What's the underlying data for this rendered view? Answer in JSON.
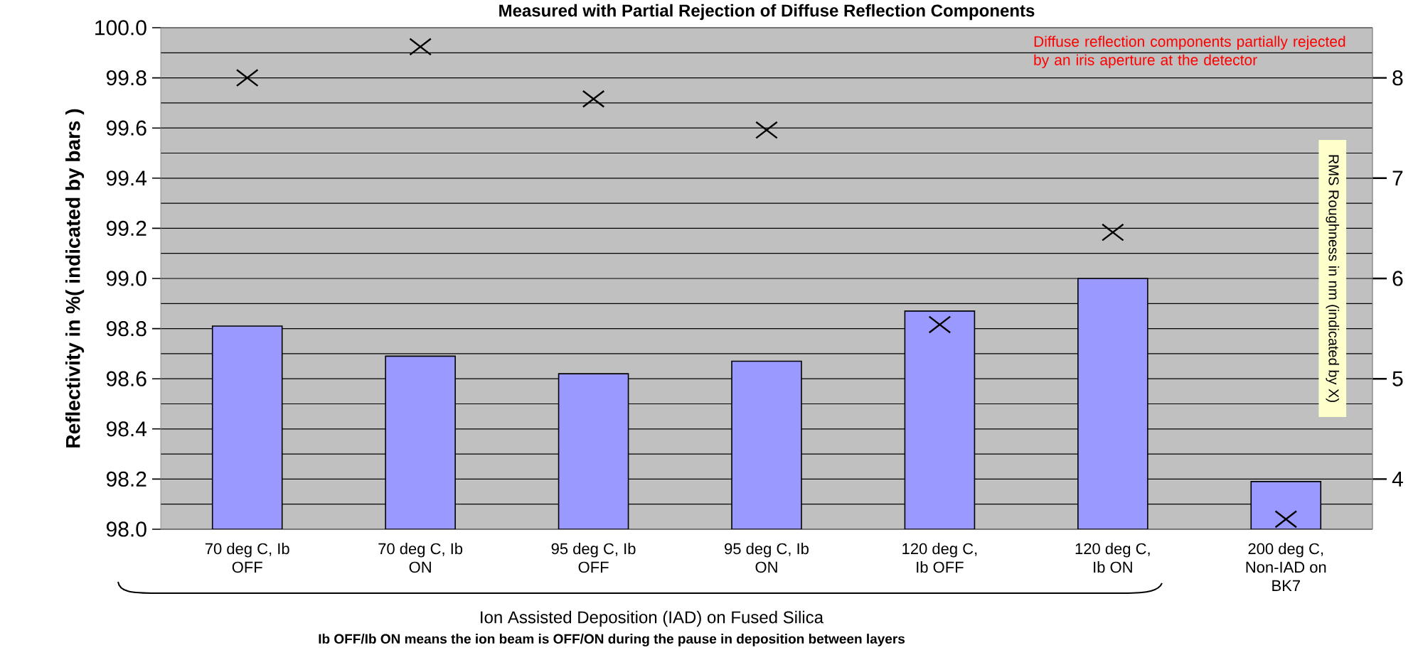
{
  "chart_data": {
    "type": "bar",
    "title": "Measured with Partial Rejection of Diffuse Reflection Components",
    "ylabel": "Reflectivity in %( indicated by bars )",
    "y2label": "RMS Roughness in nm (indicated by X)",
    "categories": [
      "70 deg C, Ib OFF",
      "70 deg C, Ib ON",
      "95 deg C, Ib OFF",
      "95 deg C, Ib ON",
      "120 deg C, Ib OFF",
      "120 deg C, Ib ON",
      "200 deg C, Non-IAD on BK7"
    ],
    "series": [
      {
        "color": "#9999ff",
        "values": [
          98.81,
          98.69,
          98.62,
          98.67,
          98.87,
          99.0,
          98.19
        ]
      },
      {
        "type": "scatter",
        "axis": "y2",
        "color": "#000000",
        "marker": "cross",
        "values": [
          8.0,
          8.31,
          7.79,
          7.48,
          5.54,
          6.46,
          3.6
        ]
      }
    ],
    "ylim": [
      98.0,
      100.0
    ],
    "yticks": [
      {
        "value": 98.0,
        "label": "98.0"
      },
      {
        "value": 98.2,
        "label": "98.2"
      },
      {
        "value": 98.4,
        "label": "98.4"
      },
      {
        "value": 98.6,
        "label": "98.6"
      },
      {
        "value": 98.8,
        "label": "98.8"
      },
      {
        "value": 99.0,
        "label": "99.0"
      },
      {
        "value": 99.2,
        "label": "99.2"
      },
      {
        "value": 99.4,
        "label": "99.4"
      },
      {
        "value": 99.6,
        "label": "99.6"
      },
      {
        "value": 99.8,
        "label": "99.8"
      },
      {
        "value": 100.0,
        "label": "100.0"
      }
    ],
    "y2lim": [
      3.5,
      8.5
    ],
    "y2ticks": [
      4,
      5,
      6,
      7,
      8
    ],
    "grid": "y",
    "annotations": [
      "Diffuse reflection components partially rejected by an iris aperture at the detector",
      "Ion Assisted Deposition (IAD) on Fused Silica",
      "Ib OFF/Ib ON means the ion beam is OFF/ON during the pause in deposition between layers"
    ]
  }
}
